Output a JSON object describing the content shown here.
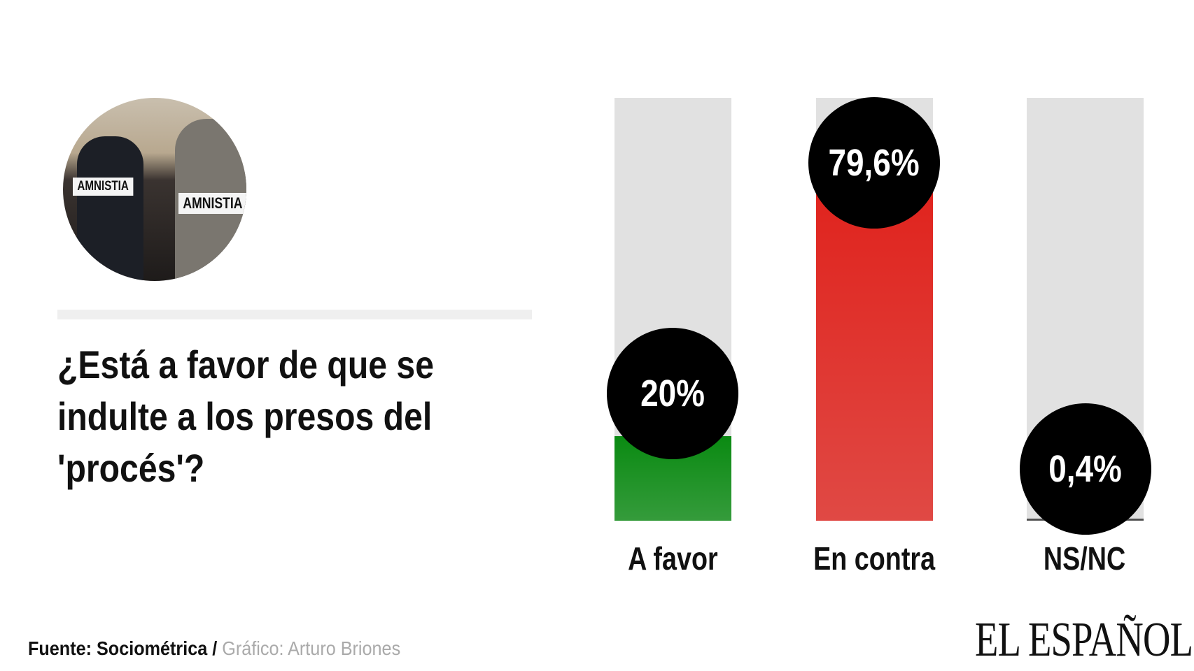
{
  "question": "¿Está a favor de que se indulte a los presos del 'procés'?",
  "photo": {
    "sign_text": "AMNISTIA"
  },
  "chart_data": {
    "type": "bar",
    "categories": [
      "A favor",
      "En contra",
      "NS/NC"
    ],
    "values": [
      20,
      79.6,
      0.4
    ],
    "value_labels": [
      "20%",
      "79,6%",
      "0,4%"
    ],
    "colors": [
      "#0a8a12",
      "#e0231d",
      "#444444"
    ],
    "ylim": [
      0,
      100
    ],
    "title": "",
    "xlabel": "",
    "ylabel": ""
  },
  "footer": {
    "source": "Fuente: Sociométrica",
    "separator": " / ",
    "credit": "Gráfico: Arturo Briones"
  },
  "logo": "EL ESPAÑOL"
}
